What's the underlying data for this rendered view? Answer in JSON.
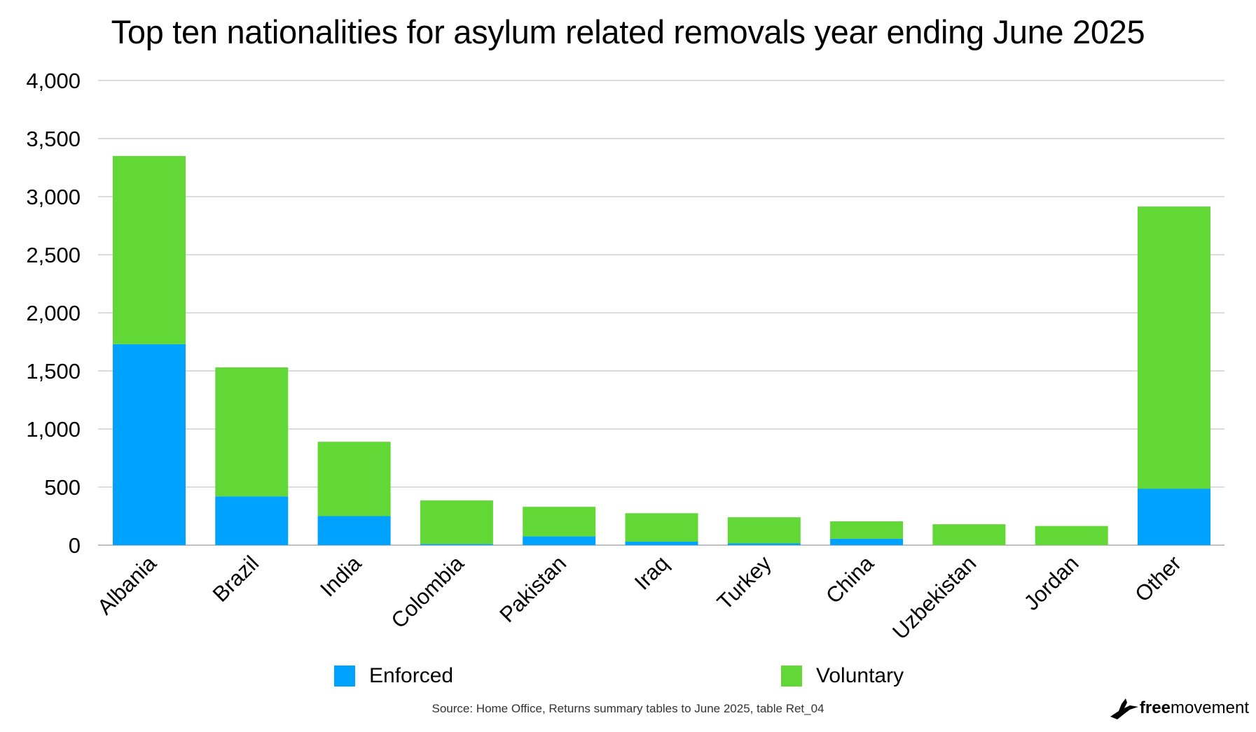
{
  "chart_data": {
    "type": "bar",
    "stacked": true,
    "title": "Top ten nationalities for asylum related removals year ending June 2025",
    "categories": [
      "Albania",
      "Brazil",
      "India",
      "Colombia",
      "Pakistan",
      "Iraq",
      "Turkey",
      "China",
      "Uzbekistan",
      "Jordan",
      "Other"
    ],
    "series": [
      {
        "name": "Enforced",
        "color": "#00A2FF",
        "values": [
          1730,
          420,
          250,
          10,
          75,
          30,
          15,
          55,
          0,
          0,
          485
        ]
      },
      {
        "name": "Voluntary",
        "color": "#61D836",
        "values": [
          1620,
          1110,
          640,
          375,
          255,
          245,
          225,
          150,
          180,
          165,
          2430
        ]
      }
    ],
    "ylim": [
      0,
      4000
    ],
    "yticks": [
      0,
      500,
      1000,
      1500,
      2000,
      2500,
      3000,
      3500,
      4000
    ],
    "ytick_labels": [
      "0",
      "500",
      "1,000",
      "1,500",
      "2,000",
      "2,500",
      "3,000",
      "3,500",
      "4,000"
    ],
    "grid": true,
    "legend_position": "bottom"
  },
  "source": "Source: Home Office, Returns summary tables to June 2025, table Ret_04",
  "logo": {
    "bold": "free",
    "rest": "movement",
    "icon": "bird-icon"
  }
}
